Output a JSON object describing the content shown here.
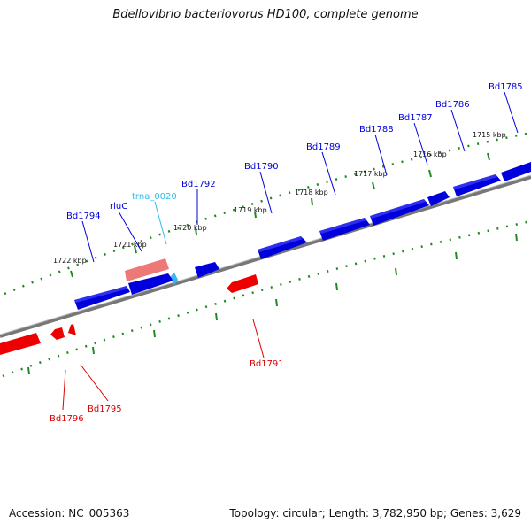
{
  "title": "Bdellovibrio bacteriovorus HD100, complete genome",
  "footer": {
    "accession": "Accession: NC_005363",
    "summary": "Topology: circular; Length: 3,782,950 bp; Genes: 3,629"
  },
  "colors": {
    "forward_gene": "#0000dd",
    "reverse_gene": "#ee0000",
    "trna": "#33bbee",
    "pseudo_gene": "#ee7777",
    "backbone": "#777777",
    "scale_ticks": "#228822"
  },
  "scale": {
    "labels": [
      "1722 kbp",
      "1721 kbp",
      "1720 kbp",
      "1719 kbp",
      "1718 kbp",
      "1717 kbp",
      "1716 kbp",
      "1715 kbp"
    ]
  },
  "features": {
    "forward": [
      "Bd1794",
      "rluC",
      "Bd1792",
      "Bd1790",
      "Bd1789",
      "Bd1788",
      "Bd1787",
      "Bd1786",
      "Bd1785"
    ],
    "trna": [
      "trna_0020"
    ],
    "reverse": [
      "Bd1791",
      "Bd1795",
      "Bd1796"
    ]
  }
}
